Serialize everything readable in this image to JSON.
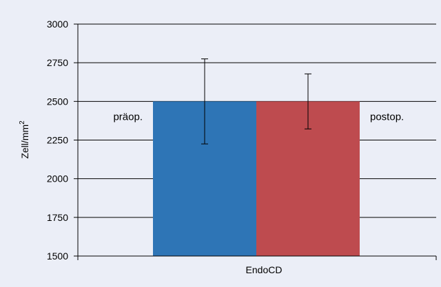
{
  "chart_data": {
    "type": "bar",
    "categories": [
      "EndoCD"
    ],
    "series": [
      {
        "name": "präop.",
        "values": [
          2500
        ],
        "error": [
          275
        ],
        "color": "#2e75b6"
      },
      {
        "name": "postop.",
        "values": [
          2500
        ],
        "error": [
          178
        ],
        "color": "#be4b4f"
      }
    ],
    "xlabel": "",
    "ylabel": "Zell/mm",
    "ylabel_sup": "2",
    "ylim": [
      1500,
      3000
    ],
    "yticks": [
      1500,
      1750,
      2000,
      2250,
      2500,
      2750,
      3000
    ],
    "grid": true,
    "legend": "labels beside bars"
  }
}
